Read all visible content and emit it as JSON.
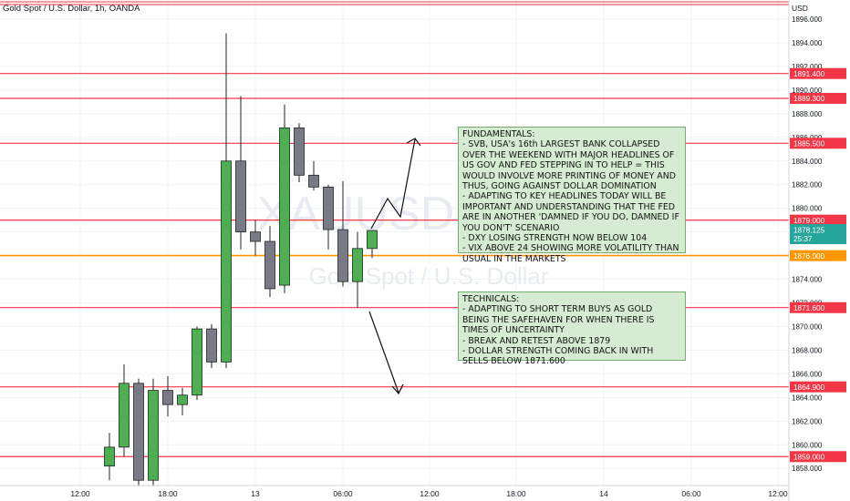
{
  "header": {
    "title": "Gold Spot / U.S. Dollar, 1h, OANDA"
  },
  "axis": {
    "currency": "USD"
  },
  "watermark": {
    "symbol": "XAUUSD",
    "description": "Gold Spot / U.S. Dollar"
  },
  "chart_data": {
    "type": "candlestick",
    "ylim": [
      1857,
      1897
    ],
    "y_ticks": [
      "1896.000",
      "1894.000",
      "1892.000",
      "1890.000",
      "1888.000",
      "1886.000",
      "1884.000",
      "1882.000",
      "1880.000",
      "1878.000",
      "1876.000",
      "1874.000",
      "1872.000",
      "1870.000",
      "1868.000",
      "1866.000",
      "1864.000",
      "1862.000",
      "1860.000",
      "1858.000"
    ],
    "x_ticks": [
      "12:00",
      "18:00",
      "13",
      "06:00",
      "12:00",
      "18:00",
      "14",
      "06:00",
      "12:00"
    ],
    "candles": [
      {
        "o": 1858.2,
        "h": 1861.0,
        "l": 1857.0,
        "c": 1859.8
      },
      {
        "o": 1859.8,
        "h": 1866.8,
        "l": 1859.0,
        "c": 1865.2
      },
      {
        "o": 1865.2,
        "h": 1865.6,
        "l": 1856.5,
        "c": 1857.0
      },
      {
        "o": 1857.0,
        "h": 1865.6,
        "l": 1856.5,
        "c": 1864.6
      },
      {
        "o": 1864.6,
        "h": 1865.8,
        "l": 1862.4,
        "c": 1863.4
      },
      {
        "o": 1863.4,
        "h": 1864.8,
        "l": 1862.5,
        "c": 1864.2
      },
      {
        "o": 1864.2,
        "h": 1870.0,
        "l": 1863.8,
        "c": 1869.8
      },
      {
        "o": 1869.8,
        "h": 1870.2,
        "l": 1866.5,
        "c": 1867.0
      },
      {
        "o": 1867.0,
        "h": 1894.8,
        "l": 1866.5,
        "c": 1884.0
      },
      {
        "o": 1884.0,
        "h": 1889.5,
        "l": 1876.5,
        "c": 1878.0
      },
      {
        "o": 1878.0,
        "h": 1879.0,
        "l": 1876.0,
        "c": 1877.2
      },
      {
        "o": 1877.2,
        "h": 1878.5,
        "l": 1872.5,
        "c": 1873.2
      },
      {
        "o": 1873.5,
        "h": 1888.8,
        "l": 1872.8,
        "c": 1886.8
      },
      {
        "o": 1886.8,
        "h": 1887.2,
        "l": 1882.2,
        "c": 1882.8
      },
      {
        "o": 1882.8,
        "h": 1884.0,
        "l": 1881.5,
        "c": 1881.8
      },
      {
        "o": 1881.8,
        "h": 1882.0,
        "l": 1876.5,
        "c": 1878.2
      },
      {
        "o": 1878.2,
        "h": 1882.3,
        "l": 1873.4,
        "c": 1873.8
      },
      {
        "o": 1873.8,
        "h": 1878.0,
        "l": 1871.6,
        "c": 1876.6
      },
      {
        "o": 1876.6,
        "h": 1878.1,
        "l": 1875.8,
        "c": 1878.125
      }
    ],
    "levels": [
      {
        "value": 1891.4,
        "label": "1891.400",
        "color": "#f23645"
      },
      {
        "value": 1889.3,
        "label": "1889.300",
        "color": "#f23645"
      },
      {
        "value": 1885.5,
        "label": "1885.500",
        "color": "#f23645"
      },
      {
        "value": 1879.0,
        "label": "1879.000",
        "color": "#f23645"
      },
      {
        "value": 1876.0,
        "label": "1876.000",
        "color": "#ff9800"
      },
      {
        "value": 1871.6,
        "label": "1871.600",
        "color": "#f23645"
      },
      {
        "value": 1864.9,
        "label": "1864.900",
        "color": "#f23645"
      },
      {
        "value": 1859.0,
        "label": "1859.000",
        "color": "#f23645"
      }
    ],
    "current_price": {
      "value": 1878.125,
      "label": "1878.125",
      "countdown": "25:37",
      "color": "#26a69a"
    },
    "colors": {
      "bull": "#4caf50",
      "bear": "#787b86",
      "outline": "#222222",
      "grid": "#f0f3fa"
    }
  },
  "annotations": {
    "fundamentals": "FUNDAMENTALS:\n- SVB, USA's 16th LARGEST BANK COLLAPSED OVER THE WEEKEND WITH MAJOR HEADLINES OF US GOV AND FED STEPPING IN TO HELP = THIS WOULD INVOLVE MORE PRINTING OF MONEY AND THUS, GOING AGAINST DOLLAR DOMINATION\n- ADAPTING TO KEY HEADLINES TODAY WILL BE IMPORTANT AND UNDERSTANDING THAT THE FED ARE IN ANOTHER 'DAMNED IF YOU DO, DAMNED IF YOU DON'T' SCENARIO\n- DXY LOSING STRENGTH NOW BELOW 104\n- VIX ABOVE 24 SHOWING MORE VOLATILITY THAN USUAL IN THE MARKETS",
    "technicals": "TECHNICALS:\n- ADAPTING TO SHORT TERM BUYS AS GOLD BEING THE SAFEHAVEN FOR WHEN THERE IS TIMES OF UNCERTAINTY\n- BREAK AND RETEST ABOVE 1879\n- DOLLAR STRENGTH COMING BACK IN WITH SELLS BELOW 1871.600"
  }
}
